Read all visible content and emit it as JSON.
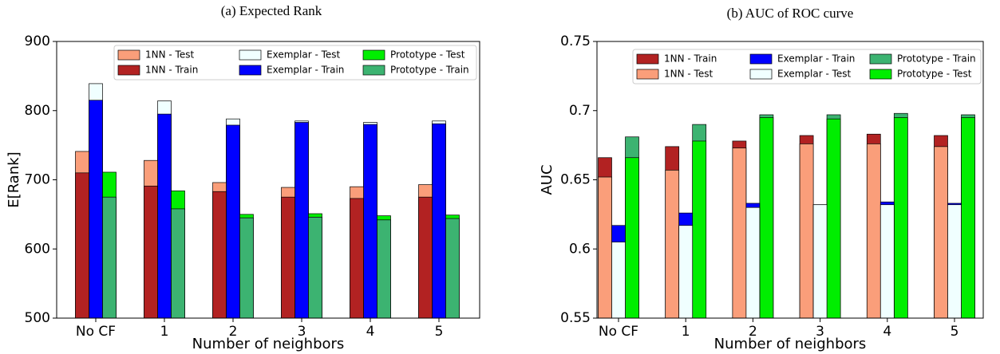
{
  "chart_data": [
    {
      "type": "bar",
      "title": "(a) Expected Rank",
      "xlabel": "Number of neighbors",
      "ylabel": "E[Rank]",
      "categories": [
        "No CF",
        "1",
        "2",
        "3",
        "4",
        "5"
      ],
      "ylim": [
        500,
        900
      ],
      "yticks": [
        500,
        600,
        700,
        800,
        900
      ],
      "grid": false,
      "legend": "upper right",
      "series": [
        {
          "name": "1NN - Test",
          "color": "#fa9e7a",
          "values": [
            741,
            728,
            696,
            689,
            690,
            693
          ]
        },
        {
          "name": "1NN - Train",
          "color": "#b22222",
          "values": [
            710,
            691,
            683,
            675,
            673,
            675
          ]
        },
        {
          "name": "Exemplar - Test",
          "color": "#f0ffff",
          "values": [
            839,
            814,
            788,
            785,
            783,
            785
          ]
        },
        {
          "name": "Exemplar - Train",
          "color": "#0000ff",
          "values": [
            815,
            795,
            779,
            783,
            780,
            781
          ]
        },
        {
          "name": "Prototype - Test",
          "color": "#00ee00",
          "values": [
            711,
            684,
            650,
            651,
            648,
            649
          ]
        },
        {
          "name": "Prototype - Train",
          "color": "#3cb371",
          "values": [
            675,
            658,
            645,
            646,
            642,
            644
          ]
        }
      ]
    },
    {
      "type": "bar",
      "title": "(b) AUC of ROC curve",
      "xlabel": "Number of neighbors",
      "ylabel": "AUC",
      "categories": [
        "No CF",
        "1",
        "2",
        "3",
        "4",
        "5"
      ],
      "ylim": [
        0.55,
        0.75
      ],
      "yticks": [
        0.55,
        0.6,
        0.65,
        0.7,
        0.75
      ],
      "grid": false,
      "legend": "upper right",
      "series": [
        {
          "name": "1NN - Train",
          "color": "#b22222",
          "values": [
            0.666,
            0.674,
            0.678,
            0.682,
            0.683,
            0.682
          ]
        },
        {
          "name": "1NN - Test",
          "color": "#fa9e7a",
          "values": [
            0.652,
            0.657,
            0.673,
            0.676,
            0.676,
            0.674
          ]
        },
        {
          "name": "Exemplar - Train",
          "color": "#0000ff",
          "values": [
            0.617,
            0.626,
            0.633,
            0.632,
            0.634,
            0.633
          ]
        },
        {
          "name": "Exemplar - Test",
          "color": "#f0ffff",
          "values": [
            0.605,
            0.617,
            0.63,
            0.632,
            0.632,
            0.632
          ]
        },
        {
          "name": "Prototype - Train",
          "color": "#3cb371",
          "values": [
            0.681,
            0.69,
            0.697,
            0.697,
            0.698,
            0.697
          ]
        },
        {
          "name": "Prototype - Test",
          "color": "#00ee00",
          "values": [
            0.666,
            0.678,
            0.695,
            0.694,
            0.695,
            0.695
          ]
        }
      ]
    }
  ]
}
